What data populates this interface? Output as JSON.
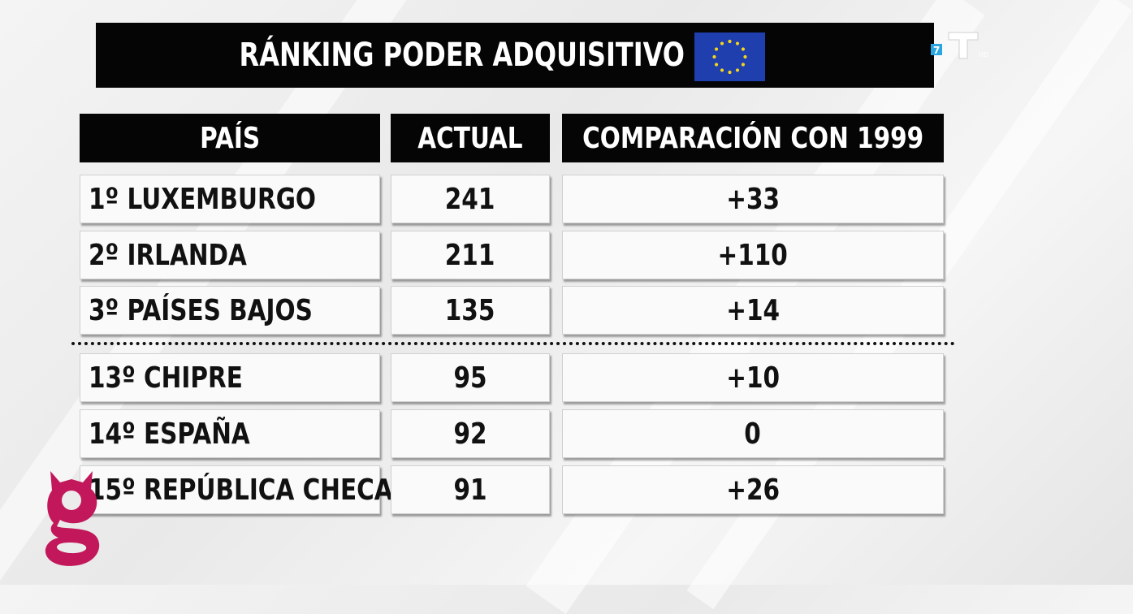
{
  "title": "RÁNKING PODER ADQUISITIVO",
  "icons": {
    "flag": "eu-flag-icon",
    "channel": "channel-t-logo-icon",
    "brand": "g-logo-icon"
  },
  "colors": {
    "header_bg": "#050505",
    "cell_bg": "#fafafa",
    "flag_blue": "#1f3fae",
    "flag_stars": "#f7d417",
    "g_logo": "#c2185b",
    "channel_accent": "#2aa7e0"
  },
  "table": {
    "headers": [
      "PAÍS",
      "ACTUAL",
      "COMPARACIÓN CON 1999"
    ],
    "rows": [
      {
        "country": "1º LUXEMBURGO",
        "actual": "241",
        "comparison": "+33"
      },
      {
        "country": "2º IRLANDA",
        "actual": "211",
        "comparison": "+110"
      },
      {
        "country": "3º PAÍSES BAJOS",
        "actual": "135",
        "comparison": "+14"
      },
      {
        "country": "13º CHIPRE",
        "actual": "95",
        "comparison": "+10"
      },
      {
        "country": "14º ESPAÑA",
        "actual": "92",
        "comparison": "0"
      },
      {
        "country": "15º REPÚBLICA CHECA",
        "actual": "91",
        "comparison": "+26"
      }
    ]
  }
}
